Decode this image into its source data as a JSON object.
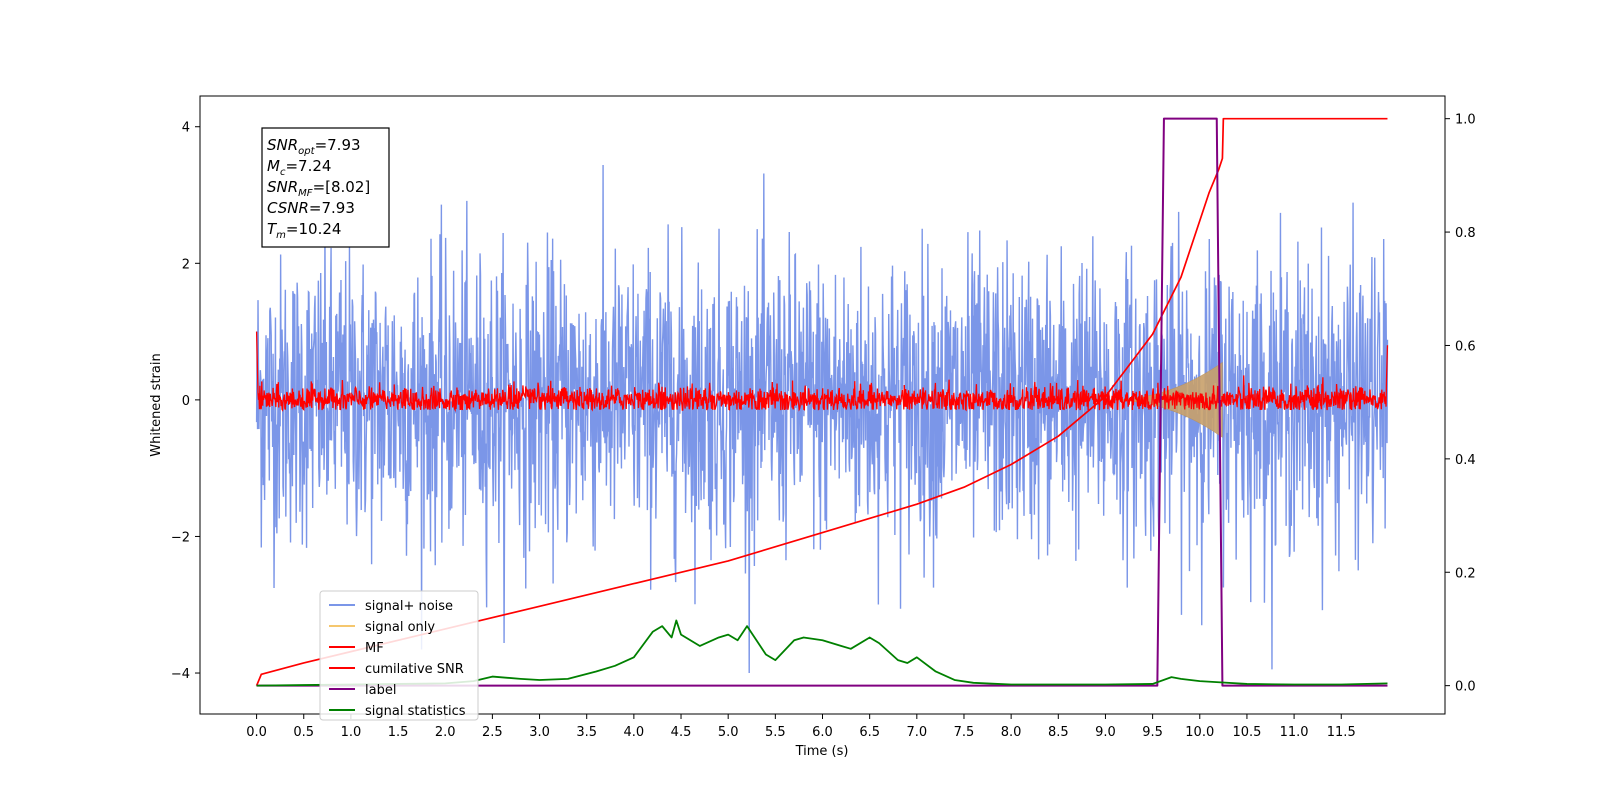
{
  "chart_data": {
    "type": "line",
    "xlabel": "Time (s)",
    "ylabel": "Whitened strain",
    "xlim": [
      -0.6,
      12.6
    ],
    "ylim": [
      -4.6,
      4.45
    ],
    "y2lim": [
      -0.05,
      1.04
    ],
    "x_ticks": [
      "0.0",
      "0.5",
      "1.0",
      "1.5",
      "2.0",
      "2.5",
      "3.0",
      "3.5",
      "4.0",
      "4.5",
      "5.0",
      "5.5",
      "6.0",
      "6.5",
      "7.0",
      "7.5",
      "8.0",
      "8.5",
      "9.0",
      "9.5",
      "10.0",
      "10.5",
      "11.0",
      "11.5"
    ],
    "y_ticks": [
      "4",
      "2",
      "0",
      "−2",
      "−4"
    ],
    "y2_ticks": [
      "1.0",
      "0.8",
      "0.6",
      "0.4",
      "0.2",
      "0.0"
    ],
    "annotation": [
      {
        "base": "SNR",
        "sub": "opt",
        "value": "=7.93"
      },
      {
        "base": "M",
        "sub": "c",
        "value": "=7.24"
      },
      {
        "base": "SNR",
        "sub": "MF",
        "value": "=[8.02]"
      },
      {
        "base": "CSNR",
        "sub": "",
        "value": "=7.93"
      },
      {
        "base": "T",
        "sub": "m",
        "value": "=10.24"
      }
    ],
    "legend": {
      "placement": "lower-left",
      "entries": [
        {
          "label": "signal+ noise",
          "color": "#7b96e8"
        },
        {
          "label": "signal only",
          "color": "#f5c76e"
        },
        {
          "label": "MF",
          "color": "#ff0000"
        },
        {
          "label": "cumilative SNR",
          "color": "#ff0000"
        },
        {
          "label": "label",
          "color": "#800080"
        },
        {
          "label": "signal statistics",
          "color": "#008000"
        }
      ]
    },
    "series": [
      {
        "name": "signal+ noise",
        "axis": "left",
        "kind": "noise",
        "x_range": [
          0.0,
          11.99
        ],
        "mean": 0.0,
        "std": 1.05,
        "color": "#7b96e8"
      },
      {
        "name": "MF",
        "axis": "left",
        "kind": "noise",
        "x_range": [
          0.0,
          11.99
        ],
        "mean": 0.0,
        "std": 0.1,
        "color": "#ff0000"
      },
      {
        "name": "signal only",
        "axis": "left",
        "kind": "chirp",
        "x_range": [
          9.0,
          10.24
        ],
        "peak_amplitude": 0.55,
        "color": "#c8a06a"
      },
      {
        "name": "cumilative SNR",
        "axis": "right",
        "x": [
          0.0,
          0.05,
          0.5,
          1.0,
          2.0,
          3.0,
          4.0,
          5.0,
          6.0,
          7.0,
          7.5,
          8.0,
          8.5,
          9.0,
          9.5,
          9.8,
          10.0,
          10.1,
          10.2,
          10.24,
          10.25,
          11.99
        ],
        "y": [
          0.0,
          0.02,
          0.04,
          0.06,
          0.1,
          0.14,
          0.18,
          0.22,
          0.27,
          0.32,
          0.35,
          0.39,
          0.44,
          0.51,
          0.62,
          0.72,
          0.82,
          0.87,
          0.91,
          0.93,
          1.0,
          1.0
        ],
        "color": "#ff0000"
      },
      {
        "name": "label",
        "axis": "right",
        "x": [
          0.0,
          9.55,
          9.62,
          10.18,
          10.24,
          11.99
        ],
        "y": [
          0.0,
          0.0,
          1.0,
          1.0,
          0.0,
          0.0
        ],
        "color": "#800080"
      },
      {
        "name": "signal statistics",
        "axis": "right",
        "x": [
          0.0,
          0.5,
          1.0,
          1.5,
          2.0,
          2.3,
          2.5,
          2.8,
          3.0,
          3.3,
          3.6,
          3.8,
          4.0,
          4.2,
          4.3,
          4.4,
          4.45,
          4.5,
          4.7,
          4.9,
          5.0,
          5.1,
          5.2,
          5.4,
          5.5,
          5.7,
          5.8,
          6.0,
          6.2,
          6.3,
          6.5,
          6.6,
          6.8,
          6.9,
          7.0,
          7.2,
          7.4,
          7.6,
          8.0,
          8.5,
          9.0,
          9.5,
          9.7,
          9.8,
          10.0,
          10.2,
          10.5,
          11.0,
          11.5,
          11.99
        ],
        "y": [
          0.0,
          0.001,
          0.002,
          0.003,
          0.004,
          0.008,
          0.016,
          0.012,
          0.01,
          0.012,
          0.025,
          0.035,
          0.05,
          0.095,
          0.105,
          0.085,
          0.115,
          0.09,
          0.07,
          0.085,
          0.09,
          0.08,
          0.105,
          0.055,
          0.045,
          0.08,
          0.085,
          0.08,
          0.07,
          0.065,
          0.085,
          0.075,
          0.045,
          0.04,
          0.05,
          0.025,
          0.01,
          0.005,
          0.002,
          0.002,
          0.002,
          0.003,
          0.015,
          0.012,
          0.008,
          0.006,
          0.003,
          0.002,
          0.002,
          0.004
        ],
        "color": "#008000"
      }
    ]
  }
}
